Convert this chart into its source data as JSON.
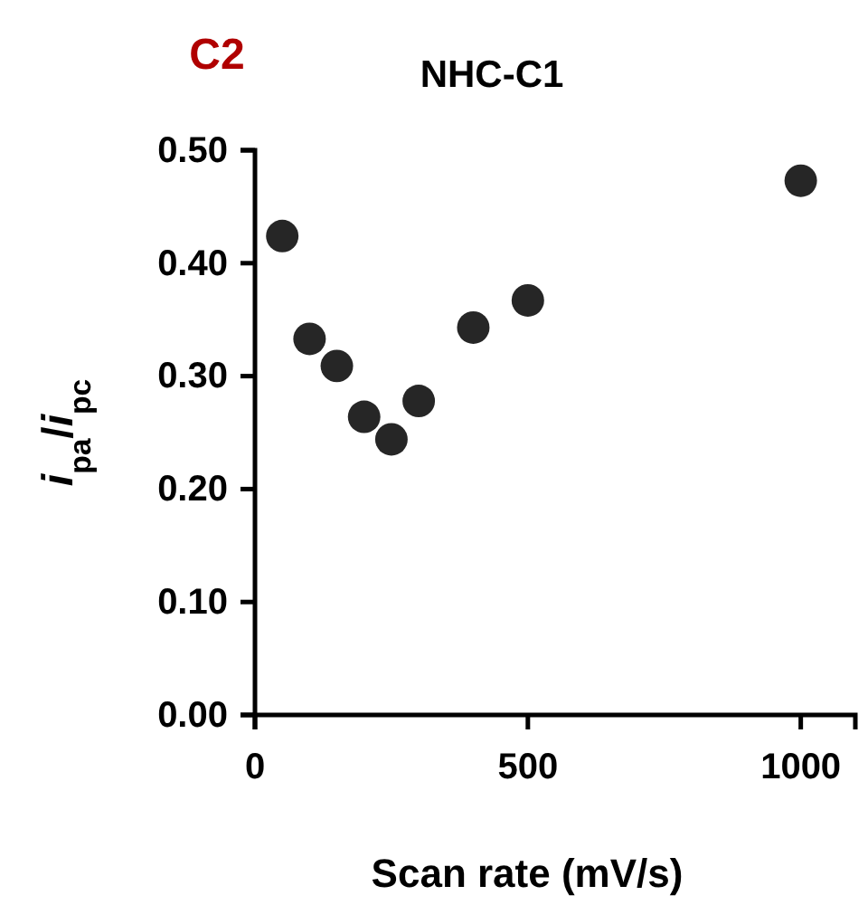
{
  "chart_data": {
    "type": "scatter",
    "title": "NHC-C1",
    "annotations": [
      "C2"
    ],
    "xlabel": "Scan rate (mV/s)",
    "ylabel": "i$_{pa}$/i$_{pc}$",
    "x": [
      50,
      100,
      150,
      200,
      250,
      300,
      400,
      500,
      1000
    ],
    "series": [
      {
        "color": "#262626",
        "values": [
          0.424,
          0.333,
          0.309,
          0.264,
          0.244,
          0.278,
          0.343,
          0.367,
          0.473
        ]
      }
    ],
    "xlim": [
      0,
      1100
    ],
    "xticks": [
      0,
      500,
      1000
    ],
    "ylim": [
      0,
      0.5
    ],
    "yticks": [
      {
        "value": 0,
        "label": "0.00"
      },
      {
        "value": 0.1,
        "label": "0.10"
      },
      {
        "value": 0.2,
        "label": "0.20"
      },
      {
        "value": 0.3,
        "label": "0.30"
      },
      {
        "value": 0.4,
        "label": "0.40"
      },
      {
        "value": 0.5,
        "label": "0.50"
      }
    ],
    "marker": "circle",
    "grid": false
  }
}
